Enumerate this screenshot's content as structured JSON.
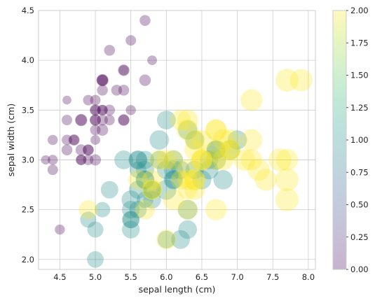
{
  "chart_data": {
    "type": "scatter",
    "title": "",
    "xlabel": "sepal length (cm)",
    "ylabel": "sepal width (cm)",
    "xlim": [
      4.2,
      8.1
    ],
    "ylim": [
      1.9,
      4.5
    ],
    "xticks": [
      "4.5",
      "5.0",
      "5.5",
      "6.0",
      "6.5",
      "7.0",
      "7.5",
      "8.0"
    ],
    "yticks": [
      "2.0",
      "2.5",
      "3.0",
      "3.5",
      "4.0",
      "4.5"
    ],
    "grid": true,
    "marker_size_encodes": "petal length (cm)",
    "colormap": "viridis",
    "point_alpha": 0.3,
    "colorbar": {
      "range": [
        0,
        2
      ],
      "ticks": [
        "0.00",
        "0.25",
        "0.50",
        "0.75",
        "1.00",
        "1.25",
        "1.50",
        "1.75",
        "2.00"
      ],
      "stops": [
        "#440154",
        "#482878",
        "#3e4a89",
        "#31688e",
        "#26828e",
        "#1f9e89",
        "#35b779",
        "#6ece58",
        "#b5de2b",
        "#fde725"
      ]
    },
    "points": [
      [
        5.1,
        3.5,
        1.4,
        0
      ],
      [
        4.9,
        3.0,
        1.4,
        0
      ],
      [
        4.7,
        3.2,
        1.3,
        0
      ],
      [
        4.6,
        3.1,
        1.5,
        0
      ],
      [
        5.0,
        3.6,
        1.4,
        0
      ],
      [
        5.4,
        3.9,
        1.7,
        0
      ],
      [
        4.6,
        3.4,
        1.4,
        0
      ],
      [
        5.0,
        3.4,
        1.5,
        0
      ],
      [
        4.4,
        2.9,
        1.4,
        0
      ],
      [
        4.9,
        3.1,
        1.5,
        0
      ],
      [
        5.4,
        3.7,
        1.5,
        0
      ],
      [
        4.8,
        3.4,
        1.6,
        0
      ],
      [
        4.8,
        3.0,
        1.4,
        0
      ],
      [
        4.3,
        3.0,
        1.1,
        0
      ],
      [
        5.8,
        4.0,
        1.2,
        0
      ],
      [
        5.7,
        4.4,
        1.5,
        0
      ],
      [
        5.4,
        3.9,
        1.3,
        0
      ],
      [
        5.1,
        3.5,
        1.4,
        0
      ],
      [
        5.7,
        3.8,
        1.7,
        0
      ],
      [
        5.1,
        3.8,
        1.5,
        0
      ],
      [
        5.4,
        3.4,
        1.7,
        0
      ],
      [
        5.1,
        3.7,
        1.5,
        0
      ],
      [
        4.6,
        3.6,
        1.0,
        0
      ],
      [
        5.1,
        3.3,
        1.7,
        0
      ],
      [
        4.8,
        3.4,
        1.9,
        0
      ],
      [
        5.0,
        3.0,
        1.6,
        0
      ],
      [
        5.0,
        3.4,
        1.6,
        0
      ],
      [
        5.2,
        3.5,
        1.5,
        0
      ],
      [
        5.2,
        3.4,
        1.4,
        0
      ],
      [
        4.7,
        3.2,
        1.6,
        0
      ],
      [
        4.8,
        3.1,
        1.6,
        0
      ],
      [
        5.4,
        3.4,
        1.5,
        0
      ],
      [
        5.2,
        4.1,
        1.5,
        0
      ],
      [
        5.5,
        4.2,
        1.4,
        0
      ],
      [
        4.9,
        3.1,
        1.5,
        0
      ],
      [
        5.0,
        3.2,
        1.2,
        0
      ],
      [
        5.5,
        3.5,
        1.3,
        0
      ],
      [
        4.9,
        3.6,
        1.4,
        0
      ],
      [
        4.4,
        3.0,
        1.3,
        0
      ],
      [
        5.1,
        3.4,
        1.5,
        0
      ],
      [
        5.0,
        3.5,
        1.3,
        0
      ],
      [
        4.5,
        2.3,
        1.3,
        0
      ],
      [
        4.4,
        3.2,
        1.3,
        0
      ],
      [
        5.0,
        3.5,
        1.6,
        0
      ],
      [
        5.1,
        3.8,
        1.9,
        0
      ],
      [
        4.8,
        3.0,
        1.4,
        0
      ],
      [
        5.1,
        3.8,
        1.6,
        0
      ],
      [
        4.6,
        3.2,
        1.4,
        0
      ],
      [
        5.3,
        3.7,
        1.5,
        0
      ],
      [
        5.0,
        3.3,
        1.4,
        0
      ],
      [
        7.0,
        3.2,
        4.7,
        1
      ],
      [
        6.4,
        3.2,
        4.5,
        1
      ],
      [
        6.9,
        3.1,
        4.9,
        1
      ],
      [
        5.5,
        2.3,
        4.0,
        1
      ],
      [
        6.5,
        2.8,
        4.6,
        1
      ],
      [
        5.7,
        2.8,
        4.5,
        1
      ],
      [
        6.3,
        3.3,
        4.7,
        1
      ],
      [
        4.9,
        2.4,
        3.3,
        1
      ],
      [
        6.6,
        2.9,
        4.6,
        1
      ],
      [
        5.2,
        2.7,
        3.9,
        1
      ],
      [
        5.0,
        2.0,
        3.5,
        1
      ],
      [
        5.9,
        3.0,
        4.2,
        1
      ],
      [
        6.0,
        2.2,
        4.0,
        1
      ],
      [
        6.1,
        2.9,
        4.7,
        1
      ],
      [
        5.6,
        2.9,
        3.6,
        1
      ],
      [
        6.7,
        3.1,
        4.4,
        1
      ],
      [
        5.6,
        3.0,
        4.5,
        1
      ],
      [
        5.8,
        2.7,
        4.1,
        1
      ],
      [
        6.2,
        2.2,
        4.5,
        1
      ],
      [
        5.6,
        2.5,
        3.9,
        1
      ],
      [
        5.9,
        3.2,
        4.8,
        1
      ],
      [
        6.1,
        2.8,
        4.0,
        1
      ],
      [
        6.3,
        2.5,
        4.9,
        1
      ],
      [
        6.1,
        2.8,
        4.7,
        1
      ],
      [
        6.4,
        2.9,
        4.3,
        1
      ],
      [
        6.6,
        3.0,
        4.4,
        1
      ],
      [
        6.8,
        2.8,
        4.8,
        1
      ],
      [
        6.7,
        3.0,
        5.0,
        1
      ],
      [
        6.0,
        2.9,
        4.5,
        1
      ],
      [
        5.7,
        2.6,
        3.5,
        1
      ],
      [
        5.5,
        2.4,
        3.8,
        1
      ],
      [
        5.5,
        2.4,
        3.7,
        1
      ],
      [
        5.8,
        2.7,
        3.9,
        1
      ],
      [
        6.0,
        2.7,
        5.1,
        1
      ],
      [
        5.4,
        3.0,
        4.5,
        1
      ],
      [
        6.0,
        3.4,
        4.5,
        1
      ],
      [
        6.7,
        3.1,
        4.7,
        1
      ],
      [
        6.3,
        2.3,
        4.4,
        1
      ],
      [
        5.6,
        3.0,
        4.1,
        1
      ],
      [
        5.5,
        2.5,
        4.0,
        1
      ],
      [
        5.5,
        2.6,
        4.4,
        1
      ],
      [
        6.1,
        3.0,
        4.6,
        1
      ],
      [
        5.8,
        2.6,
        4.0,
        1
      ],
      [
        5.0,
        2.3,
        3.3,
        1
      ],
      [
        5.6,
        2.7,
        4.2,
        1
      ],
      [
        5.7,
        3.0,
        4.2,
        1
      ],
      [
        5.7,
        2.9,
        4.2,
        1
      ],
      [
        6.2,
        2.9,
        4.3,
        1
      ],
      [
        5.1,
        2.5,
        3.0,
        1
      ],
      [
        5.7,
        2.8,
        4.1,
        1
      ],
      [
        6.3,
        3.3,
        6.0,
        2
      ],
      [
        5.8,
        2.7,
        5.1,
        2
      ],
      [
        7.1,
        3.0,
        5.9,
        2
      ],
      [
        6.3,
        2.9,
        5.6,
        2
      ],
      [
        6.5,
        3.0,
        5.8,
        2
      ],
      [
        7.6,
        3.0,
        6.6,
        2
      ],
      [
        4.9,
        2.5,
        4.5,
        2
      ],
      [
        7.3,
        2.9,
        6.3,
        2
      ],
      [
        6.7,
        2.5,
        5.8,
        2
      ],
      [
        7.2,
        3.6,
        6.1,
        2
      ],
      [
        6.5,
        3.2,
        5.1,
        2
      ],
      [
        6.4,
        2.7,
        5.3,
        2
      ],
      [
        6.8,
        3.0,
        5.5,
        2
      ],
      [
        5.7,
        2.5,
        5.0,
        2
      ],
      [
        5.8,
        2.8,
        5.1,
        2
      ],
      [
        6.4,
        3.2,
        5.3,
        2
      ],
      [
        6.5,
        3.0,
        5.5,
        2
      ],
      [
        7.7,
        3.8,
        6.7,
        2
      ],
      [
        7.7,
        2.6,
        6.9,
        2
      ],
      [
        6.0,
        2.2,
        5.0,
        2
      ],
      [
        6.9,
        3.2,
        5.7,
        2
      ],
      [
        5.6,
        2.8,
        4.9,
        2
      ],
      [
        7.7,
        2.8,
        6.7,
        2
      ],
      [
        6.3,
        2.7,
        4.9,
        2
      ],
      [
        6.7,
        3.3,
        5.7,
        2
      ],
      [
        7.2,
        3.2,
        6.0,
        2
      ],
      [
        6.2,
        2.8,
        4.8,
        2
      ],
      [
        6.1,
        3.0,
        4.9,
        2
      ],
      [
        6.4,
        2.8,
        5.6,
        2
      ],
      [
        7.2,
        3.0,
        5.8,
        2
      ],
      [
        7.4,
        2.8,
        6.1,
        2
      ],
      [
        7.9,
        3.8,
        6.4,
        2
      ],
      [
        6.4,
        2.8,
        5.6,
        2
      ],
      [
        6.3,
        2.8,
        5.1,
        2
      ],
      [
        6.1,
        2.6,
        5.6,
        2
      ],
      [
        7.7,
        3.0,
        6.1,
        2
      ],
      [
        6.3,
        3.4,
        5.6,
        2
      ],
      [
        6.4,
        3.1,
        5.5,
        2
      ],
      [
        6.0,
        3.0,
        4.8,
        2
      ],
      [
        6.9,
        3.1,
        5.4,
        2
      ],
      [
        6.7,
        3.1,
        5.6,
        2
      ],
      [
        6.9,
        3.1,
        5.1,
        2
      ],
      [
        5.8,
        2.7,
        5.1,
        2
      ],
      [
        6.8,
        3.2,
        5.9,
        2
      ],
      [
        6.7,
        3.3,
        5.7,
        2
      ],
      [
        6.7,
        3.0,
        5.2,
        2
      ],
      [
        6.3,
        2.5,
        5.0,
        2
      ],
      [
        6.5,
        3.0,
        5.2,
        2
      ],
      [
        6.2,
        3.4,
        5.4,
        2
      ],
      [
        5.9,
        3.0,
        5.1,
        2
      ]
    ]
  }
}
